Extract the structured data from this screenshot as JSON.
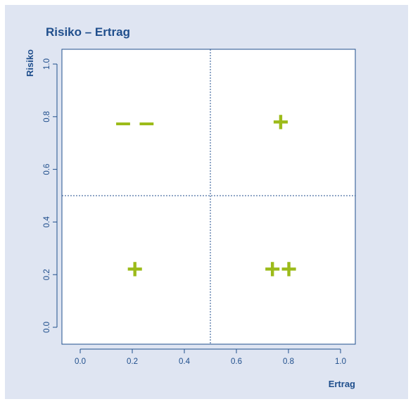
{
  "colors": {
    "panel_background": "#dfe5f2",
    "axis": "#1f4e8c",
    "marks": "#9cbb1a",
    "plot_background": "#ffffff"
  },
  "chart_data": {
    "type": "scatter",
    "title": "Risiko – Ertrag",
    "xlabel": "Ertrag",
    "ylabel": "Risiko",
    "xlim": [
      0.0,
      1.0
    ],
    "ylim": [
      0.0,
      1.0
    ],
    "x_ticks": [
      "0.0",
      "0.2",
      "0.4",
      "0.6",
      "0.8",
      "1.0"
    ],
    "y_ticks": [
      "0.0",
      "0.2",
      "0.4",
      "0.6",
      "0.8",
      "1.0"
    ],
    "divider_lines": {
      "x": 0.5,
      "y": 0.5,
      "style": "dotted"
    },
    "grid": false,
    "annotations": [
      {
        "label": "– –",
        "x": 0.21,
        "y": 0.78
      },
      {
        "label": "+",
        "x": 0.77,
        "y": 0.78
      },
      {
        "label": "+",
        "x": 0.21,
        "y": 0.22
      },
      {
        "label": "++",
        "x": 0.77,
        "y": 0.22
      }
    ]
  }
}
